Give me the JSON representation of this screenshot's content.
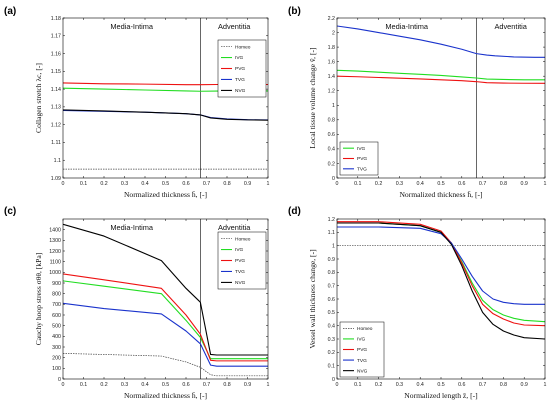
{
  "chart_data": [
    {
      "type": "line",
      "panel_label": "(a)",
      "ylabel": "Collagen stretch λc, [-]",
      "xlabel": "Normalized thickness h̄, [-]",
      "xlim": [
        0,
        1
      ],
      "ylim": [
        1.09,
        1.18
      ],
      "xticks": [
        "0",
        "0.1",
        "0.2",
        "0.3",
        "0.4",
        "0.5",
        "0.6",
        "0.7",
        "0.8",
        "0.9",
        "1"
      ],
      "yticks": [
        "1.09",
        "1.1",
        "1.11",
        "1.12",
        "1.13",
        "1.14",
        "1.15",
        "1.16",
        "1.17",
        "1.18"
      ],
      "regions": [
        "Media-Intima",
        "Adventitia"
      ],
      "divider_x": 0.67,
      "legend_placement": "top-right",
      "series": [
        {
          "name": "Homeo",
          "color": "#444444",
          "dash": "1.5,1",
          "x": [
            0,
            0.5,
            1
          ],
          "y": [
            1.095,
            1.095,
            1.095
          ]
        },
        {
          "name": "IVG",
          "color": "#22dd22",
          "x": [
            0,
            0.2,
            0.4,
            0.6,
            0.67,
            0.75,
            0.85,
            1
          ],
          "y": [
            1.1405,
            1.14,
            1.1395,
            1.139,
            1.1388,
            1.1389,
            1.139,
            1.139
          ]
        },
        {
          "name": "PVG",
          "color": "#ee1111",
          "x": [
            0,
            0.2,
            0.4,
            0.6,
            0.67,
            0.75,
            0.85,
            1
          ],
          "y": [
            1.1435,
            1.143,
            1.1428,
            1.1425,
            1.1425,
            1.1426,
            1.1426,
            1.1426
          ]
        },
        {
          "name": "TVG",
          "color": "#1a33cc",
          "x": [
            0,
            0.2,
            0.4,
            0.6,
            0.67,
            0.72,
            0.8,
            0.9,
            1
          ],
          "y": [
            1.128,
            1.1275,
            1.127,
            1.1262,
            1.1255,
            1.124,
            1.1232,
            1.1228,
            1.1227
          ]
        },
        {
          "name": "NVG",
          "color": "#000000",
          "x": [
            0,
            0.2,
            0.4,
            0.6,
            0.67,
            0.72,
            0.8,
            0.9,
            1
          ],
          "y": [
            1.1283,
            1.1277,
            1.127,
            1.1262,
            1.1255,
            1.1238,
            1.123,
            1.1227,
            1.1225
          ]
        }
      ]
    },
    {
      "type": "line",
      "panel_label": "(b)",
      "ylabel": "Local tissue volume change v̂, [-]",
      "xlabel": "Normalized thickness h̄, [-]",
      "xlim": [
        0,
        1
      ],
      "ylim": [
        0,
        2.2
      ],
      "xticks": [
        "0",
        "0.1",
        "0.2",
        "0.3",
        "0.4",
        "0.5",
        "0.6",
        "0.7",
        "0.8",
        "0.9",
        "1"
      ],
      "yticks": [
        "0",
        "0.2",
        "0.4",
        "0.6",
        "0.8",
        "1",
        "1.2",
        "1.4",
        "1.6",
        "1.8",
        "2",
        "2.2"
      ],
      "regions": [
        "Media-Intima",
        "Adventitia"
      ],
      "divider_x": 0.67,
      "legend_placement": "bottom-left",
      "series": [
        {
          "name": "IVG",
          "color": "#22dd22",
          "x": [
            0,
            0.1,
            0.2,
            0.3,
            0.4,
            0.5,
            0.6,
            0.67,
            0.72,
            0.8,
            0.9,
            1
          ],
          "y": [
            1.48,
            1.47,
            1.455,
            1.44,
            1.425,
            1.41,
            1.39,
            1.375,
            1.36,
            1.355,
            1.35,
            1.35
          ]
        },
        {
          "name": "PVG",
          "color": "#ee1111",
          "x": [
            0,
            0.1,
            0.2,
            0.3,
            0.4,
            0.5,
            0.6,
            0.67,
            0.72,
            0.8,
            0.9,
            1
          ],
          "y": [
            1.4,
            1.392,
            1.382,
            1.372,
            1.362,
            1.35,
            1.338,
            1.325,
            1.31,
            1.305,
            1.303,
            1.302
          ]
        },
        {
          "name": "TVG",
          "color": "#1a33cc",
          "x": [
            0,
            0.1,
            0.2,
            0.3,
            0.4,
            0.5,
            0.6,
            0.67,
            0.72,
            0.76,
            0.85,
            0.95,
            1
          ],
          "y": [
            2.09,
            2.05,
            2.0,
            1.95,
            1.9,
            1.84,
            1.77,
            1.71,
            1.69,
            1.68,
            1.665,
            1.66,
            1.66
          ]
        }
      ]
    },
    {
      "type": "line",
      "panel_label": "(c)",
      "ylabel": "Cauchy hoop stress σθθ, [kPa]",
      "xlabel": "Normalized thickness h̄, [-]",
      "xlim": [
        0,
        1
      ],
      "ylim": [
        0,
        1500
      ],
      "xticks": [
        "0",
        "0.1",
        "0.2",
        "0.3",
        "0.4",
        "0.5",
        "0.6",
        "0.7",
        "0.8",
        "0.9",
        "1"
      ],
      "yticks": [
        "0",
        "100",
        "200",
        "300",
        "400",
        "500",
        "600",
        "700",
        "800",
        "900",
        "1000",
        "1100",
        "1200",
        "1300",
        "1400"
      ],
      "regions": [
        "Media-Intima",
        "Adventitia"
      ],
      "divider_x": 0.67,
      "legend_placement": "top-right",
      "series": [
        {
          "name": "Homeo",
          "color": "#444444",
          "dash": "1.5,1",
          "x": [
            0,
            0.2,
            0.48,
            0.6,
            0.67,
            0.72,
            0.75,
            1
          ],
          "y": [
            240,
            230,
            215,
            160,
            110,
            40,
            30,
            30
          ]
        },
        {
          "name": "IVG",
          "color": "#22dd22",
          "x": [
            0,
            0.2,
            0.48,
            0.6,
            0.67,
            0.72,
            0.75,
            1
          ],
          "y": [
            920,
            870,
            800,
            550,
            390,
            190,
            190,
            190
          ]
        },
        {
          "name": "PVG",
          "color": "#ee1111",
          "x": [
            0,
            0.2,
            0.48,
            0.6,
            0.67,
            0.72,
            0.75,
            1
          ],
          "y": [
            985,
            930,
            850,
            600,
            420,
            175,
            170,
            170
          ]
        },
        {
          "name": "TVG",
          "color": "#1a33cc",
          "x": [
            0,
            0.2,
            0.48,
            0.6,
            0.67,
            0.72,
            0.75,
            1
          ],
          "y": [
            710,
            660,
            610,
            450,
            330,
            130,
            120,
            120
          ]
        },
        {
          "name": "NVG",
          "color": "#000000",
          "x": [
            0,
            0.2,
            0.48,
            0.6,
            0.67,
            0.72,
            0.75,
            1
          ],
          "y": [
            1450,
            1340,
            1110,
            850,
            720,
            230,
            225,
            225
          ]
        }
      ]
    },
    {
      "type": "line",
      "panel_label": "(d)",
      "ylabel": "Vessel wall thickness change, [-]",
      "xlabel": "Normalized length z̄, [-]",
      "xlim": [
        0,
        1
      ],
      "ylim": [
        0,
        1.2
      ],
      "xticks": [
        "0",
        "0.1",
        "0.2",
        "0.3",
        "0.4",
        "0.5",
        "0.6",
        "0.7",
        "0.8",
        "0.9",
        "1"
      ],
      "yticks": [
        "0",
        "0.1",
        "0.2",
        "0.3",
        "0.4",
        "0.5",
        "0.6",
        "0.7",
        "0.8",
        "0.9",
        "1",
        "1.1",
        "1.2"
      ],
      "legend_placement": "bottom-left",
      "series": [
        {
          "name": "Homeo",
          "color": "#444444",
          "dash": "1.5,1",
          "x": [
            0,
            0.5,
            1
          ],
          "y": [
            1.0,
            1.0,
            1.0
          ]
        },
        {
          "name": "IVG",
          "color": "#22dd22",
          "x": [
            0,
            0.2,
            0.4,
            0.5,
            0.55,
            0.6,
            0.65,
            0.7,
            0.75,
            0.8,
            0.85,
            0.9,
            1
          ],
          "y": [
            1.17,
            1.17,
            1.15,
            1.1,
            1.02,
            0.88,
            0.72,
            0.59,
            0.52,
            0.48,
            0.455,
            0.44,
            0.43
          ]
        },
        {
          "name": "PVG",
          "color": "#ee1111",
          "x": [
            0,
            0.2,
            0.4,
            0.5,
            0.55,
            0.6,
            0.65,
            0.7,
            0.75,
            0.8,
            0.85,
            0.9,
            1
          ],
          "y": [
            1.18,
            1.18,
            1.16,
            1.11,
            1.02,
            0.87,
            0.7,
            0.56,
            0.49,
            0.45,
            0.42,
            0.405,
            0.4
          ]
        },
        {
          "name": "TVG",
          "color": "#1a33cc",
          "x": [
            0,
            0.2,
            0.4,
            0.5,
            0.55,
            0.6,
            0.65,
            0.7,
            0.75,
            0.8,
            0.85,
            0.9,
            1
          ],
          "y": [
            1.14,
            1.14,
            1.13,
            1.09,
            1.02,
            0.9,
            0.77,
            0.66,
            0.6,
            0.575,
            0.565,
            0.56,
            0.56
          ]
        },
        {
          "name": "NVG",
          "color": "#000000",
          "x": [
            0,
            0.2,
            0.4,
            0.5,
            0.55,
            0.6,
            0.65,
            0.7,
            0.75,
            0.8,
            0.85,
            0.9,
            1
          ],
          "y": [
            1.17,
            1.17,
            1.15,
            1.1,
            1.01,
            0.85,
            0.66,
            0.5,
            0.41,
            0.36,
            0.33,
            0.31,
            0.3
          ]
        }
      ]
    }
  ]
}
